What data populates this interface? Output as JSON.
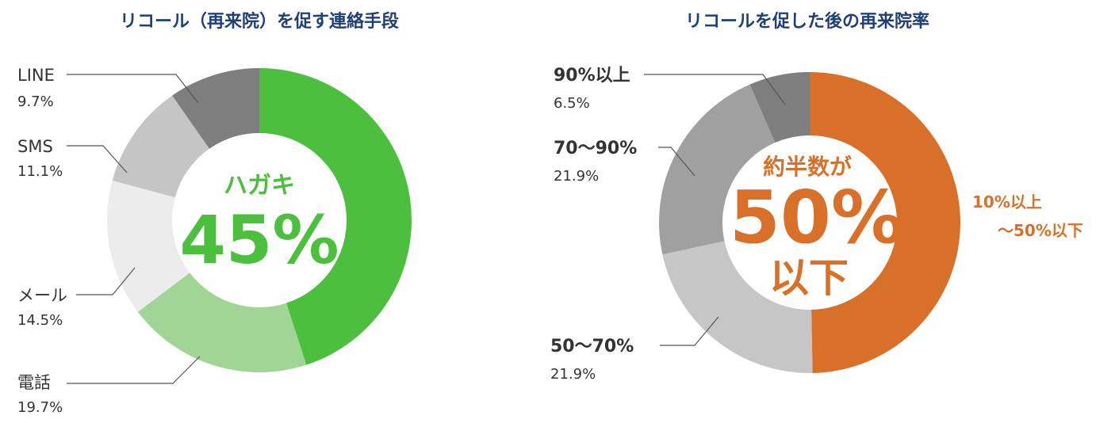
{
  "chart_data": [
    {
      "type": "pie",
      "title": "リコール（再来院）を促す連絡手段",
      "center_label": "ハガキ",
      "center_value": "45%",
      "slices": [
        {
          "label": "ハガキ",
          "value": 45.0,
          "value_label": "",
          "color": "#4dbf3f"
        },
        {
          "label": "電話",
          "value": 19.7,
          "value_label": "19.7%",
          "color": "#a0d595"
        },
        {
          "label": "メール",
          "value": 14.5,
          "value_label": "14.5%",
          "color": "#ececec"
        },
        {
          "label": "SMS",
          "value": 11.1,
          "value_label": "11.1%",
          "color": "#c5c5c5"
        },
        {
          "label": "LINE",
          "value": 9.7,
          "value_label": "9.7%",
          "color": "#7e7e7e"
        }
      ]
    },
    {
      "type": "pie",
      "title": "リコールを促した後の再来院率",
      "center_top": "約半数が",
      "center_value": "50%",
      "center_bottom": "以下",
      "slices": [
        {
          "label": "10%以上",
          "label2": "〜50%以下",
          "value": 49.7,
          "value_label": "",
          "color": "#d97029"
        },
        {
          "label": "50〜70%",
          "value": 21.9,
          "value_label": "21.9%",
          "color": "#c6c6c6"
        },
        {
          "label": "70〜90%",
          "value": 21.9,
          "value_label": "21.9%",
          "color": "#a0a0a0"
        },
        {
          "label": "90%以上",
          "value": 6.5,
          "value_label": "6.5%",
          "color": "#7e7e7e"
        }
      ]
    }
  ]
}
